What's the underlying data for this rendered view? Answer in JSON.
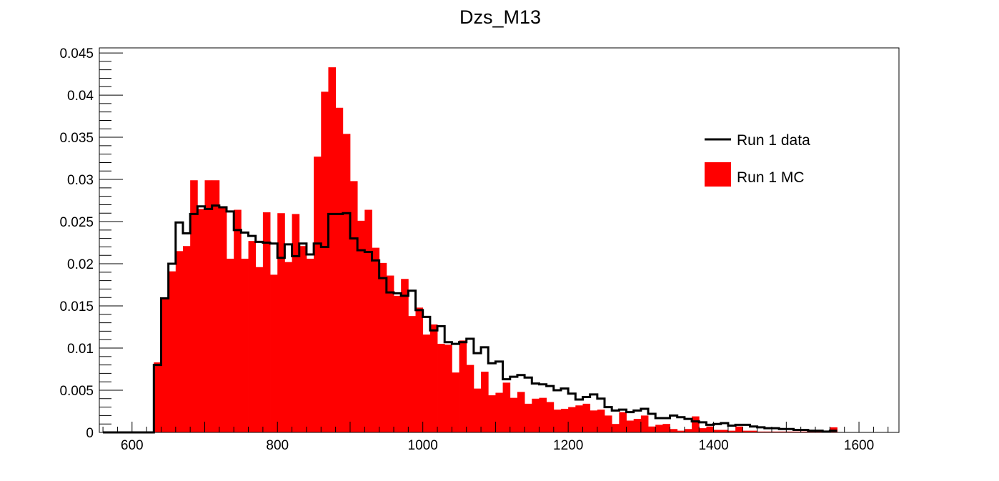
{
  "chart_data": {
    "type": "bar",
    "title": "Dzs_M13",
    "xlabel": "",
    "ylabel": "",
    "xlim": [
      555,
      1655
    ],
    "ylim": [
      0,
      0.0456
    ],
    "bin_width": 10,
    "x_ticks": [
      600,
      800,
      1000,
      1200,
      1400,
      1600
    ],
    "x_tick_labels": [
      "600",
      "800",
      "1000",
      "1200",
      "1400",
      "1600"
    ],
    "y_ticks": [
      0,
      0.005,
      0.01,
      0.015,
      0.02,
      0.025,
      0.03,
      0.035,
      0.04,
      0.045
    ],
    "y_tick_labels": [
      "0",
      "0.005",
      "0.01",
      "0.015",
      "0.02",
      "0.025",
      "0.03",
      "0.035",
      "0.04",
      "0.045"
    ],
    "grid": false,
    "legend_position": "top-right",
    "series": [
      {
        "name": "Run 1 MC",
        "style": "filled",
        "color": "#ff0000",
        "x_start": 560,
        "values": [
          0,
          0,
          0,
          0,
          0,
          0,
          0,
          0.0083,
          0.0159,
          0.0191,
          0.0215,
          0.0221,
          0.0299,
          0.0265,
          0.0299,
          0.0299,
          0.0266,
          0.0206,
          0.0264,
          0.0206,
          0.0227,
          0.0196,
          0.0261,
          0.0187,
          0.026,
          0.0202,
          0.0259,
          0.0221,
          0.0206,
          0.0327,
          0.0404,
          0.0433,
          0.0385,
          0.0354,
          0.0298,
          0.0251,
          0.0264,
          0.0219,
          0.0201,
          0.0186,
          0.0162,
          0.0182,
          0.0138,
          0.0148,
          0.0116,
          0.0128,
          0.0105,
          0.0104,
          0.0071,
          0.0109,
          0.008,
          0.0052,
          0.0072,
          0.0044,
          0.0047,
          0.0059,
          0.0041,
          0.0048,
          0.0034,
          0.004,
          0.0041,
          0.0036,
          0.0027,
          0.0028,
          0.003,
          0.0032,
          0.0034,
          0.0026,
          0.0027,
          0.002,
          0.001,
          0.0024,
          0.0014,
          0.0016,
          0.002,
          0.0007,
          0.0009,
          0.001,
          0.0004,
          0.0002,
          0.0004,
          0.0019,
          0.0005,
          0.0007,
          0.0003,
          0.0003,
          0.0002,
          0.0007,
          0.0002,
          0.0002,
          0.0001,
          0.0001,
          0.0001,
          0.0001,
          0.0001,
          0.0001,
          0.0001,
          0.0001,
          0.0001,
          0.0001,
          0.0006
        ]
      },
      {
        "name": "Run 1 data",
        "style": "step",
        "color": "#000000",
        "x_start": 560,
        "values": [
          0,
          0,
          0,
          0,
          0,
          0,
          0,
          0.008,
          0.0159,
          0.02,
          0.0249,
          0.0236,
          0.0259,
          0.0268,
          0.0265,
          0.0269,
          0.0267,
          0.0262,
          0.024,
          0.0237,
          0.0233,
          0.0226,
          0.0225,
          0.0224,
          0.0207,
          0.0223,
          0.0209,
          0.0224,
          0.0211,
          0.0224,
          0.022,
          0.0259,
          0.0259,
          0.026,
          0.023,
          0.0216,
          0.0214,
          0.0204,
          0.0183,
          0.0166,
          0.0165,
          0.0162,
          0.0168,
          0.0145,
          0.0137,
          0.0121,
          0.0126,
          0.0107,
          0.0105,
          0.0107,
          0.0111,
          0.0094,
          0.0101,
          0.0082,
          0.0084,
          0.0063,
          0.0066,
          0.0068,
          0.0065,
          0.0058,
          0.0057,
          0.0055,
          0.005,
          0.0052,
          0.0046,
          0.0039,
          0.0042,
          0.0045,
          0.004,
          0.003,
          0.0026,
          0.0027,
          0.0024,
          0.0026,
          0.0028,
          0.0022,
          0.0017,
          0.0017,
          0.002,
          0.0018,
          0.0016,
          0.0013,
          0.0012,
          0.0009,
          0.001,
          0.0011,
          0.0008,
          0.0009,
          0.0009,
          0.0007,
          0.0006,
          0.0005,
          0.0005,
          0.0004,
          0.0004,
          0.0003,
          0.0003,
          0.0002,
          0.0002,
          0.0001,
          0.0002
        ]
      }
    ]
  }
}
